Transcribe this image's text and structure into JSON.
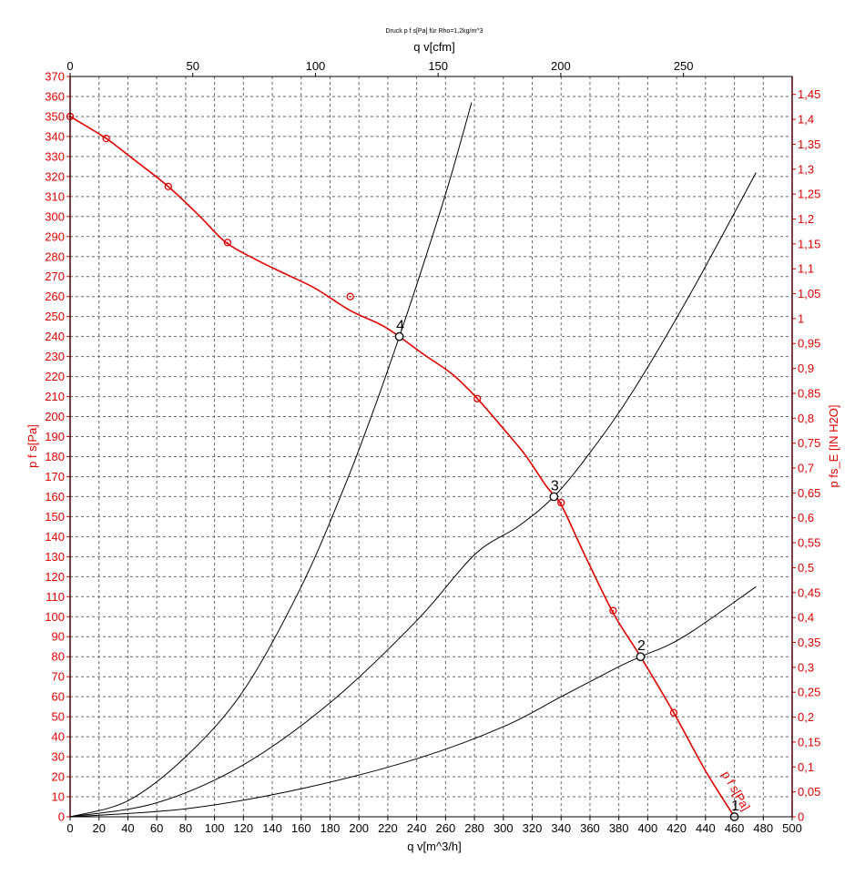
{
  "chart_data": {
    "type": "line",
    "title": "Druck p f s[Pa] für Rho=1,2kg/m^3",
    "xlabel": "q v[m^3/h]",
    "x2label": "q v[cfm]",
    "ylabel": "p f s[Pa]",
    "y2label": "p fs_E [IN H2O]",
    "xlim": [
      0,
      500
    ],
    "ylim": [
      0,
      370
    ],
    "x2lim": [
      0,
      294.3
    ],
    "y2lim": [
      0,
      1.486
    ],
    "x_ticks": [
      0,
      20,
      40,
      60,
      80,
      100,
      120,
      140,
      160,
      180,
      200,
      220,
      240,
      260,
      280,
      300,
      320,
      340,
      360,
      380,
      400,
      420,
      440,
      460,
      480,
      500
    ],
    "y_ticks": [
      0,
      10,
      20,
      30,
      40,
      50,
      60,
      70,
      80,
      90,
      100,
      110,
      120,
      130,
      140,
      150,
      160,
      170,
      180,
      190,
      200,
      210,
      220,
      230,
      240,
      250,
      260,
      270,
      280,
      290,
      300,
      310,
      320,
      330,
      340,
      350,
      360,
      370
    ],
    "x2_ticks": [
      0,
      50,
      100,
      150,
      200,
      250
    ],
    "y2_ticks": [
      "0",
      "0,05",
      "0,1",
      "0,15",
      "0,2",
      "0,25",
      "0,3",
      "0,35",
      "0,4",
      "0,45",
      "0,5",
      "0,55",
      "0,6",
      "0,65",
      "0,7",
      "0,75",
      "0,8",
      "0,85",
      "0,9",
      "0,95",
      "1",
      "1,05",
      "1,1",
      "1,15",
      "1,2",
      "1,25",
      "1,3",
      "1,35",
      "1,4",
      "1,45"
    ],
    "grid": true,
    "colors": {
      "fan_curve": "#e00000",
      "system_curve": "#000000",
      "frame": "#000000"
    },
    "fan_curve": {
      "label": "p f s[Pa]",
      "x": [
        0,
        25,
        45,
        68,
        90,
        108,
        130,
        150,
        170,
        194,
        215,
        228,
        245,
        265,
        282,
        300,
        315,
        330,
        340,
        355,
        376,
        395,
        418,
        440,
        460
      ],
      "y": [
        350,
        339,
        328,
        315,
        300,
        287,
        278,
        271,
        264,
        253,
        246,
        240,
        231,
        221,
        209,
        194,
        181,
        165,
        156,
        133,
        102,
        80,
        52,
        23,
        0
      ]
    },
    "measured_points": {
      "x": [
        0,
        25,
        68,
        109,
        194,
        282,
        340,
        376,
        418
      ],
      "y": [
        350,
        339,
        315,
        287,
        260,
        209,
        157,
        103,
        52
      ]
    },
    "system_curves": [
      {
        "x": [
          0,
          40,
          80,
          120,
          160,
          190,
          210,
          228,
          245,
          262,
          278
        ],
        "y": [
          0,
          8,
          30,
          63,
          115,
          165,
          203,
          240,
          277,
          316,
          357
        ]
      },
      {
        "x": [
          0,
          60,
          120,
          180,
          240,
          280,
          310,
          335,
          360,
          390,
          430,
          475
        ],
        "y": [
          0,
          7,
          26,
          57,
          98,
          131,
          145,
          160,
          182,
          213,
          262,
          322
        ]
      },
      {
        "x": [
          0,
          80,
          160,
          240,
          300,
          340,
          380,
          395,
          425,
          475
        ],
        "y": [
          0,
          4,
          14,
          29,
          45,
          60,
          75,
          80,
          90,
          115
        ]
      }
    ],
    "operating_points": [
      {
        "label": "1",
        "x": 460,
        "y": 0
      },
      {
        "label": "2",
        "x": 395,
        "y": 80
      },
      {
        "label": "3",
        "x": 335,
        "y": 160
      },
      {
        "label": "4",
        "x": 228,
        "y": 240
      }
    ]
  }
}
